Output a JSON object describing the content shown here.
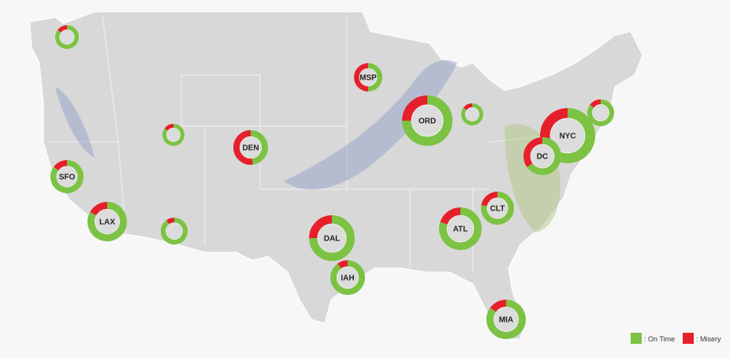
{
  "map": {
    "airports": [
      {
        "code": null,
        "on_time": 85,
        "misery": 15
      },
      {
        "code": "MSP",
        "on_time": 50,
        "misery": 50
      },
      {
        "code": "ORD",
        "on_time": 75,
        "misery": 25
      },
      {
        "code": null,
        "on_time": 85,
        "misery": 15
      },
      {
        "code": null,
        "on_time": 85,
        "misery": 15
      },
      {
        "code": "NYC",
        "on_time": 70,
        "misery": 30
      },
      {
        "code": "DC",
        "on_time": 65,
        "misery": 35
      },
      {
        "code": null,
        "on_time": 85,
        "misery": 15
      },
      {
        "code": "DEN",
        "on_time": 48,
        "misery": 52
      },
      {
        "code": "SFO",
        "on_time": 85,
        "misery": 15
      },
      {
        "code": "LAX",
        "on_time": 83,
        "misery": 17
      },
      {
        "code": null,
        "on_time": 90,
        "misery": 10
      },
      {
        "code": "DAL",
        "on_time": 75,
        "misery": 25
      },
      {
        "code": "IAH",
        "on_time": 90,
        "misery": 10
      },
      {
        "code": "ATL",
        "on_time": 80,
        "misery": 20
      },
      {
        "code": "CLT",
        "on_time": 78,
        "misery": 22
      },
      {
        "code": "MIA",
        "on_time": 85,
        "misery": 15
      }
    ],
    "legend": [
      {
        "label": ": On Time",
        "color": "#7cc243"
      },
      {
        "label": ": Misery",
        "color": "#e5202b"
      }
    ]
  }
}
